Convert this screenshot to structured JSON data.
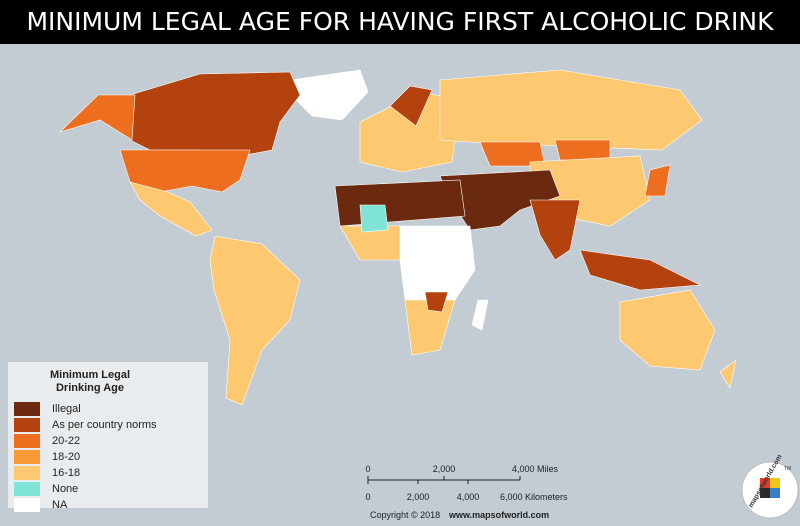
{
  "header": {
    "title": "MINIMUM LEGAL AGE FOR HAVING FIRST ALCOHOLIC DRINK"
  },
  "legend": {
    "title_lines": [
      "Minimum Legal",
      "Drinking Age"
    ],
    "items": [
      {
        "label": "Illegal",
        "color": "#6b2a0f"
      },
      {
        "label": "As per country norms",
        "color": "#b4420e"
      },
      {
        "label": "20-22",
        "color": "#ee6e20"
      },
      {
        "label": "18-20",
        "color": "#f79a36"
      },
      {
        "label": "16-18",
        "color": "#fdc86f"
      },
      {
        "label": "None",
        "color": "#7fe3d6"
      },
      {
        "label": "NA",
        "color": "#ffffff"
      }
    ]
  },
  "scale": {
    "miles": [
      "0",
      "2,000",
      "4,000 Miles"
    ],
    "kilometers": [
      "0",
      "2,000",
      "4,000",
      "6,000 Kilometers"
    ]
  },
  "footer": {
    "copyright": "Copyright © 2018",
    "site": "www.mapsofworld.com"
  },
  "logo": {
    "text": "mapsofworld.com",
    "tm": "TM"
  }
}
